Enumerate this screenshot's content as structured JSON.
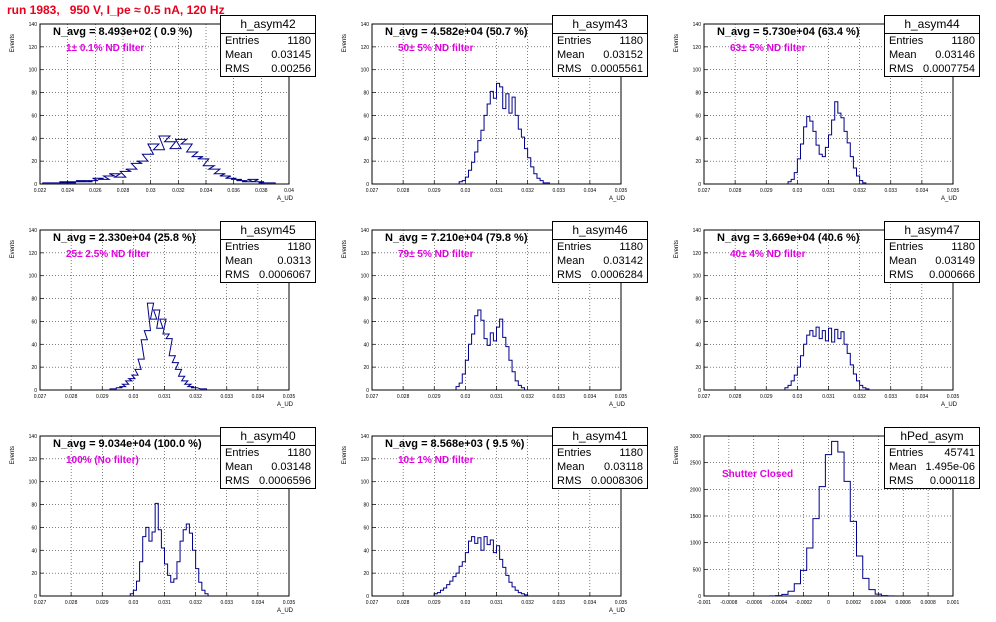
{
  "run_title": "run 1983,   950 V, I_pe ≈ 0.5 nA, 120 Hz",
  "colors": {
    "title": "#e8001c",
    "filter_label": "#e000e0",
    "hist_line": "#00008b"
  },
  "stats_labels": {
    "entries": "Entries",
    "mean": "Mean",
    "rms": "RMS"
  },
  "chart_data": [
    {
      "type": "histogram",
      "name": "h_asym42",
      "entries": "1180",
      "mean": "0.03145",
      "rms": "0.00256",
      "navg": "N_avg = 8.493e+02 ( 0.9 %)",
      "filter": "1± 0.1% ND filter",
      "xlabel": "A_UD",
      "ylabel": "Events",
      "xlim": [
        0.022,
        0.04
      ],
      "ylim": [
        0,
        140
      ],
      "xticks": [
        "0.022",
        "0.024",
        "0.026",
        "0.028",
        "0.03",
        "0.032",
        "0.034",
        "0.036",
        "0.038",
        "0.04"
      ],
      "yticks": [
        "0",
        "20",
        "40",
        "60",
        "80",
        "100",
        "120",
        "140"
      ],
      "grid": true,
      "bins": [
        [
          0.0226,
          1
        ],
        [
          0.0234,
          1
        ],
        [
          0.0238,
          2
        ],
        [
          0.0242,
          1
        ],
        [
          0.0246,
          2
        ],
        [
          0.025,
          3
        ],
        [
          0.0254,
          2
        ],
        [
          0.0258,
          3
        ],
        [
          0.0262,
          5
        ],
        [
          0.0266,
          4
        ],
        [
          0.027,
          7
        ],
        [
          0.0274,
          9
        ],
        [
          0.0278,
          6
        ],
        [
          0.0282,
          11
        ],
        [
          0.0286,
          13
        ],
        [
          0.029,
          18
        ],
        [
          0.0294,
          20
        ],
        [
          0.0298,
          26
        ],
        [
          0.0302,
          35
        ],
        [
          0.0306,
          30
        ],
        [
          0.031,
          42
        ],
        [
          0.0314,
          37
        ],
        [
          0.0318,
          31
        ],
        [
          0.0322,
          39
        ],
        [
          0.0326,
          35
        ],
        [
          0.033,
          28
        ],
        [
          0.0334,
          24
        ],
        [
          0.0338,
          22
        ],
        [
          0.0342,
          16
        ],
        [
          0.0346,
          13
        ],
        [
          0.035,
          9
        ],
        [
          0.0354,
          7
        ],
        [
          0.0358,
          5
        ],
        [
          0.0362,
          4
        ],
        [
          0.0366,
          3
        ],
        [
          0.037,
          2
        ],
        [
          0.0374,
          4
        ],
        [
          0.0378,
          2
        ],
        [
          0.0382,
          1
        ],
        [
          0.0386,
          1
        ]
      ]
    },
    {
      "type": "histogram",
      "name": "h_asym43",
      "entries": "1180",
      "mean": "0.03152",
      "rms": "0.0005561",
      "navg": "N_avg = 4.582e+04 (50.7 %)",
      "filter": "50± 5% ND filter",
      "xlabel": "A_UD",
      "ylabel": "Events",
      "xlim": [
        0.027,
        0.035
      ],
      "ylim": [
        0,
        140
      ],
      "xticks": [
        "0.027",
        "0.028",
        "0.029",
        "0.03",
        "0.031",
        "0.032",
        "0.033",
        "0.034",
        "0.035"
      ],
      "yticks": [
        "0",
        "20",
        "40",
        "60",
        "80",
        "100",
        "120",
        "140"
      ],
      "grid": true,
      "bins": [
        [
          0.02985,
          2
        ],
        [
          0.02995,
          3
        ],
        [
          0.03005,
          6
        ],
        [
          0.03015,
          12
        ],
        [
          0.03025,
          19
        ],
        [
          0.03035,
          28
        ],
        [
          0.03045,
          38
        ],
        [
          0.03055,
          47
        ],
        [
          0.03065,
          60
        ],
        [
          0.03075,
          70
        ],
        [
          0.03085,
          81
        ],
        [
          0.03095,
          75
        ],
        [
          0.03105,
          88
        ],
        [
          0.03115,
          85
        ],
        [
          0.03125,
          66
        ],
        [
          0.03135,
          79
        ],
        [
          0.03145,
          62
        ],
        [
          0.03155,
          76
        ],
        [
          0.03165,
          60
        ],
        [
          0.03175,
          48
        ],
        [
          0.03185,
          41
        ],
        [
          0.03195,
          31
        ],
        [
          0.03205,
          23
        ],
        [
          0.03215,
          15
        ],
        [
          0.03225,
          9
        ],
        [
          0.03235,
          5
        ],
        [
          0.03245,
          3
        ],
        [
          0.03255,
          1
        ],
        [
          0.03265,
          1
        ]
      ]
    },
    {
      "type": "histogram",
      "name": "h_asym44",
      "entries": "1180",
      "mean": "0.03146",
      "rms": "0.0007754",
      "navg": "N_avg = 5.730e+04 (63.4 %)",
      "filter": "63± 5% ND filter",
      "xlabel": "A_UD",
      "ylabel": "Events",
      "xlim": [
        0.027,
        0.035
      ],
      "ylim": [
        0,
        140
      ],
      "xticks": [
        "0.027",
        "0.028",
        "0.029",
        "0.03",
        "0.031",
        "0.032",
        "0.033",
        "0.034",
        "0.035"
      ],
      "yticks": [
        "0",
        "20",
        "40",
        "60",
        "80",
        "100",
        "120",
        "140"
      ],
      "grid": true,
      "bins": [
        [
          0.02975,
          2
        ],
        [
          0.02985,
          4
        ],
        [
          0.02995,
          10
        ],
        [
          0.03005,
          22
        ],
        [
          0.03015,
          35
        ],
        [
          0.03025,
          50
        ],
        [
          0.03035,
          59
        ],
        [
          0.03045,
          55
        ],
        [
          0.03055,
          46
        ],
        [
          0.03065,
          34
        ],
        [
          0.03075,
          26
        ],
        [
          0.03085,
          24
        ],
        [
          0.03095,
          32
        ],
        [
          0.03105,
          43
        ],
        [
          0.03115,
          56
        ],
        [
          0.03125,
          72
        ],
        [
          0.03135,
          62
        ],
        [
          0.03145,
          58
        ],
        [
          0.03155,
          46
        ],
        [
          0.03165,
          36
        ],
        [
          0.03175,
          24
        ],
        [
          0.03185,
          14
        ],
        [
          0.03195,
          7
        ],
        [
          0.03205,
          3
        ],
        [
          0.03215,
          1
        ]
      ]
    },
    {
      "type": "histogram",
      "name": "h_asym45",
      "entries": "1180",
      "mean": "0.0313",
      "rms": "0.0006067",
      "navg": "N_avg = 2.330e+04 (25.8 %)",
      "filter": "25± 2.5% ND filter",
      "xlabel": "A_UD",
      "ylabel": "Events",
      "xlim": [
        0.027,
        0.035
      ],
      "ylim": [
        0,
        140
      ],
      "xticks": [
        "0.027",
        "0.028",
        "0.029",
        "0.03",
        "0.031",
        "0.032",
        "0.033",
        "0.034",
        "0.035"
      ],
      "yticks": [
        "0",
        "20",
        "40",
        "60",
        "80",
        "100",
        "120",
        "140"
      ],
      "grid": true,
      "bins": [
        [
          0.02935,
          1
        ],
        [
          0.02955,
          2
        ],
        [
          0.02965,
          3
        ],
        [
          0.02975,
          5
        ],
        [
          0.02985,
          8
        ],
        [
          0.02995,
          10
        ],
        [
          0.03005,
          13
        ],
        [
          0.03015,
          18
        ],
        [
          0.03025,
          27
        ],
        [
          0.03035,
          44
        ],
        [
          0.03045,
          52
        ],
        [
          0.03055,
          76
        ],
        [
          0.03065,
          62
        ],
        [
          0.03075,
          70
        ],
        [
          0.03085,
          54
        ],
        [
          0.03095,
          62
        ],
        [
          0.03105,
          49
        ],
        [
          0.03115,
          45
        ],
        [
          0.03125,
          30
        ],
        [
          0.03135,
          24
        ],
        [
          0.03145,
          18
        ],
        [
          0.03155,
          12
        ],
        [
          0.03165,
          8
        ],
        [
          0.03175,
          5
        ],
        [
          0.03185,
          3
        ],
        [
          0.03195,
          2
        ],
        [
          0.03225,
          1
        ]
      ]
    },
    {
      "type": "histogram",
      "name": "h_asym46",
      "entries": "1180",
      "mean": "0.03142",
      "rms": "0.0006284",
      "navg": "N_avg = 7.210e+04 (79.8 %)",
      "filter": "79± 5% ND filter",
      "xlabel": "A_UD",
      "ylabel": "Events",
      "xlim": [
        0.027,
        0.035
      ],
      "ylim": [
        0,
        140
      ],
      "xticks": [
        "0.027",
        "0.028",
        "0.029",
        "0.03",
        "0.031",
        "0.032",
        "0.033",
        "0.034",
        "0.035"
      ],
      "yticks": [
        "0",
        "20",
        "40",
        "60",
        "80",
        "100",
        "120",
        "140"
      ],
      "grid": true,
      "bins": [
        [
          0.02975,
          3
        ],
        [
          0.02985,
          6
        ],
        [
          0.02995,
          14
        ],
        [
          0.03005,
          26
        ],
        [
          0.03015,
          40
        ],
        [
          0.03025,
          49
        ],
        [
          0.03035,
          65
        ],
        [
          0.03045,
          70
        ],
        [
          0.03055,
          61
        ],
        [
          0.03065,
          45
        ],
        [
          0.03075,
          39
        ],
        [
          0.03085,
          50
        ],
        [
          0.03095,
          43
        ],
        [
          0.03105,
          55
        ],
        [
          0.03115,
          62
        ],
        [
          0.03125,
          46
        ],
        [
          0.03135,
          38
        ],
        [
          0.03145,
          26
        ],
        [
          0.03155,
          16
        ],
        [
          0.03165,
          8
        ],
        [
          0.03175,
          4
        ],
        [
          0.03185,
          2
        ]
      ]
    },
    {
      "type": "histogram",
      "name": "h_asym47",
      "entries": "1180",
      "mean": "0.03149",
      "rms": "0.000666",
      "navg": "N_avg = 3.669e+04 (40.6 %)",
      "filter": "40± 4% ND filter",
      "xlabel": "A_UD",
      "ylabel": "Events",
      "xlim": [
        0.027,
        0.035
      ],
      "ylim": [
        0,
        140
      ],
      "xticks": [
        "0.027",
        "0.028",
        "0.029",
        "0.03",
        "0.031",
        "0.032",
        "0.033",
        "0.034",
        "0.035"
      ],
      "yticks": [
        "0",
        "20",
        "40",
        "60",
        "80",
        "100",
        "120",
        "140"
      ],
      "grid": true,
      "bins": [
        [
          0.02965,
          2
        ],
        [
          0.02975,
          4
        ],
        [
          0.02985,
          8
        ],
        [
          0.02995,
          13
        ],
        [
          0.03005,
          20
        ],
        [
          0.03015,
          30
        ],
        [
          0.03025,
          40
        ],
        [
          0.03035,
          48
        ],
        [
          0.03045,
          52
        ],
        [
          0.03055,
          47
        ],
        [
          0.03065,
          55
        ],
        [
          0.03075,
          45
        ],
        [
          0.03085,
          52
        ],
        [
          0.03095,
          43
        ],
        [
          0.03105,
          54
        ],
        [
          0.03115,
          42
        ],
        [
          0.03125,
          53
        ],
        [
          0.03135,
          45
        ],
        [
          0.03145,
          51
        ],
        [
          0.03155,
          40
        ],
        [
          0.03165,
          32
        ],
        [
          0.03175,
          22
        ],
        [
          0.03185,
          14
        ],
        [
          0.03195,
          8
        ],
        [
          0.03205,
          4
        ],
        [
          0.03215,
          2
        ],
        [
          0.03225,
          1
        ]
      ]
    },
    {
      "type": "histogram",
      "name": "h_asym40",
      "entries": "1180",
      "mean": "0.03148",
      "rms": "0.0006596",
      "navg": "N_avg = 9.034e+04 (100.0 %)",
      "filter": "100% (No filter)",
      "xlabel": "A_UD",
      "ylabel": "Events",
      "xlim": [
        0.027,
        0.035
      ],
      "ylim": [
        0,
        140
      ],
      "xticks": [
        "0.027",
        "0.028",
        "0.029",
        "0.03",
        "0.031",
        "0.032",
        "0.033",
        "0.034",
        "0.035"
      ],
      "yticks": [
        "0",
        "20",
        "40",
        "60",
        "80",
        "100",
        "120",
        "140"
      ],
      "grid": true,
      "bins": [
        [
          0.02995,
          2
        ],
        [
          0.03005,
          5
        ],
        [
          0.03015,
          13
        ],
        [
          0.03025,
          30
        ],
        [
          0.03035,
          52
        ],
        [
          0.03045,
          60
        ],
        [
          0.03055,
          48
        ],
        [
          0.03065,
          56
        ],
        [
          0.03075,
          81
        ],
        [
          0.03085,
          58
        ],
        [
          0.03095,
          42
        ],
        [
          0.03105,
          28
        ],
        [
          0.03115,
          18
        ],
        [
          0.03125,
          12
        ],
        [
          0.03135,
          15
        ],
        [
          0.03145,
          30
        ],
        [
          0.03155,
          48
        ],
        [
          0.03165,
          58
        ],
        [
          0.03175,
          63
        ],
        [
          0.03185,
          55
        ],
        [
          0.03195,
          40
        ],
        [
          0.03205,
          24
        ],
        [
          0.03215,
          12
        ],
        [
          0.03225,
          5
        ],
        [
          0.03235,
          2
        ]
      ]
    },
    {
      "type": "histogram",
      "name": "h_asym41",
      "entries": "1180",
      "mean": "0.03118",
      "rms": "0.0008306",
      "navg": "N_avg = 8.568e+03 ( 9.5 %)",
      "filter": "10± 1% ND filter",
      "xlabel": "A_UD",
      "ylabel": "Events",
      "xlim": [
        0.027,
        0.035
      ],
      "ylim": [
        0,
        140
      ],
      "xticks": [
        "0.027",
        "0.028",
        "0.029",
        "0.03",
        "0.031",
        "0.032",
        "0.033",
        "0.034",
        "0.035"
      ],
      "yticks": [
        "0",
        "20",
        "40",
        "60",
        "80",
        "100",
        "120",
        "140"
      ],
      "grid": true,
      "bins": [
        [
          0.02905,
          2
        ],
        [
          0.02915,
          3
        ],
        [
          0.02925,
          5
        ],
        [
          0.02935,
          7
        ],
        [
          0.02945,
          10
        ],
        [
          0.02955,
          13
        ],
        [
          0.02965,
          17
        ],
        [
          0.02975,
          20
        ],
        [
          0.02985,
          26
        ],
        [
          0.02995,
          30
        ],
        [
          0.03005,
          38
        ],
        [
          0.03015,
          48
        ],
        [
          0.03025,
          52
        ],
        [
          0.03035,
          46
        ],
        [
          0.03045,
          51
        ],
        [
          0.03055,
          40
        ],
        [
          0.03065,
          52
        ],
        [
          0.03075,
          45
        ],
        [
          0.03085,
          49
        ],
        [
          0.03095,
          38
        ],
        [
          0.03105,
          44
        ],
        [
          0.03115,
          32
        ],
        [
          0.03125,
          25
        ],
        [
          0.03135,
          18
        ],
        [
          0.03145,
          12
        ],
        [
          0.03155,
          8
        ],
        [
          0.03165,
          5
        ],
        [
          0.03175,
          3
        ],
        [
          0.03185,
          2
        ],
        [
          0.03195,
          1
        ]
      ]
    },
    {
      "type": "histogram",
      "name": "hPed_asym",
      "entries": "45741",
      "mean": "1.495e-06",
      "rms": "0.000118",
      "navg": "",
      "filter": "Shutter Closed",
      "xlabel": "",
      "ylabel": "Events",
      "xlim": [
        -0.001,
        0.001
      ],
      "ylim": [
        0,
        3000
      ],
      "xticks": [
        "-0.001",
        "-0.0008",
        "-0.0006",
        "-0.0004",
        "-0.0002",
        "0",
        "0.0002",
        "0.0004",
        "0.0006",
        "0.0008",
        "0.001"
      ],
      "yticks": [
        "0",
        "500",
        "1000",
        "1500",
        "2000",
        "2500",
        "3000"
      ],
      "grid": true,
      "bins": [
        [
          -0.00045,
          2
        ],
        [
          -0.0004,
          8
        ],
        [
          -0.00035,
          30
        ],
        [
          -0.0003,
          90
        ],
        [
          -0.00025,
          230
        ],
        [
          -0.0002,
          480
        ],
        [
          -0.00015,
          900
        ],
        [
          -0.0001,
          1450
        ],
        [
          -5e-05,
          2050
        ],
        [
          0.0,
          2650
        ],
        [
          5e-05,
          2900
        ],
        [
          0.0001,
          2700
        ],
        [
          0.00015,
          2150
        ],
        [
          0.0002,
          1400
        ],
        [
          0.00025,
          750
        ],
        [
          0.0003,
          330
        ],
        [
          0.00035,
          120
        ],
        [
          0.0004,
          35
        ],
        [
          0.00045,
          8
        ],
        [
          0.0005,
          2
        ]
      ]
    }
  ]
}
